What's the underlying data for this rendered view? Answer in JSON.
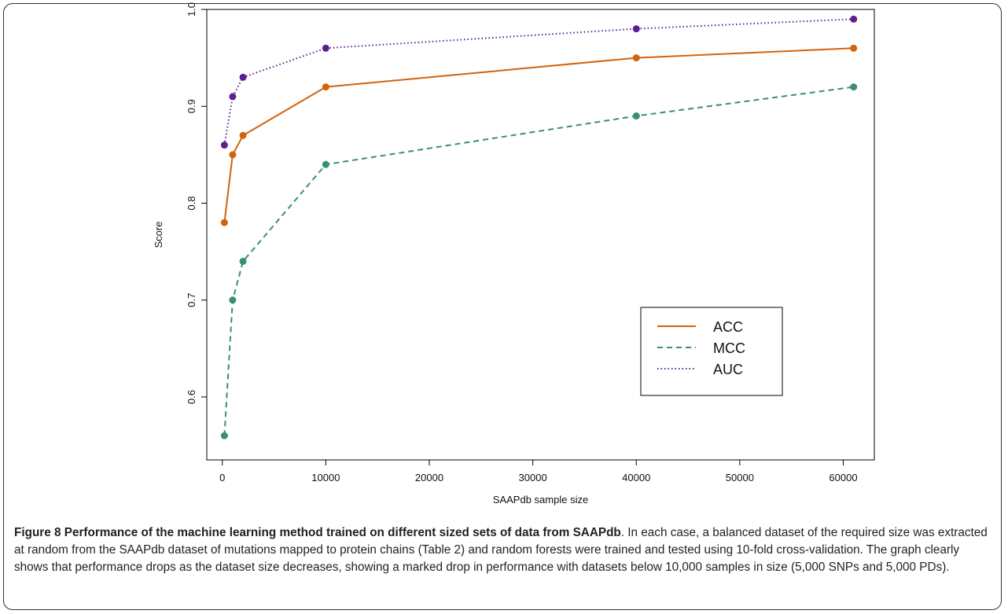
{
  "chart_data": {
    "type": "line",
    "title": "",
    "xlabel": "SAAPdb sample size",
    "ylabel": "Score",
    "xlim": [
      -1500,
      63000
    ],
    "ylim": [
      0.535,
      1.0
    ],
    "xticks": [
      0,
      10000,
      20000,
      30000,
      40000,
      50000,
      60000
    ],
    "xtick_labels": [
      "0",
      "10000",
      "20000",
      "30000",
      "40000",
      "50000",
      "60000"
    ],
    "yticks": [
      0.6,
      0.7,
      0.8,
      0.9,
      1.0
    ],
    "ytick_labels": [
      "0.6",
      "0.7",
      "0.8",
      "0.9",
      "1.0"
    ],
    "x": [
      200,
      1000,
      2000,
      10000,
      40000,
      61000
    ],
    "grid": false,
    "legend_position": "lower-right",
    "series": [
      {
        "name": "ACC",
        "values": [
          0.78,
          0.85,
          0.87,
          0.92,
          0.95,
          0.96
        ],
        "color": "#d3630b",
        "line_style": "solid"
      },
      {
        "name": "MCC",
        "values": [
          0.56,
          0.7,
          0.74,
          0.84,
          0.89,
          0.92
        ],
        "color": "#3a8f6e",
        "line_style": "dashed"
      },
      {
        "name": "AUC",
        "values": [
          0.86,
          0.91,
          0.93,
          0.96,
          0.98,
          0.99
        ],
        "color": "#5e1e8e",
        "line_style": "dotted"
      }
    ]
  },
  "caption": {
    "title": "Figure 8 Performance of the machine learning method trained on different sized sets of data from SAAPdb",
    "body": ". In each case, a balanced dataset of the required size was extracted at random from the SAAPdb dataset of mutations mapped to protein chains (Table 2) and random forests were trained and tested using 10-fold cross-validation. The graph clearly shows that performance drops as the dataset size decreases, showing a marked drop in performance with datasets below 10,000 samples in size (5,000 SNPs and 5,000 PDs)."
  }
}
